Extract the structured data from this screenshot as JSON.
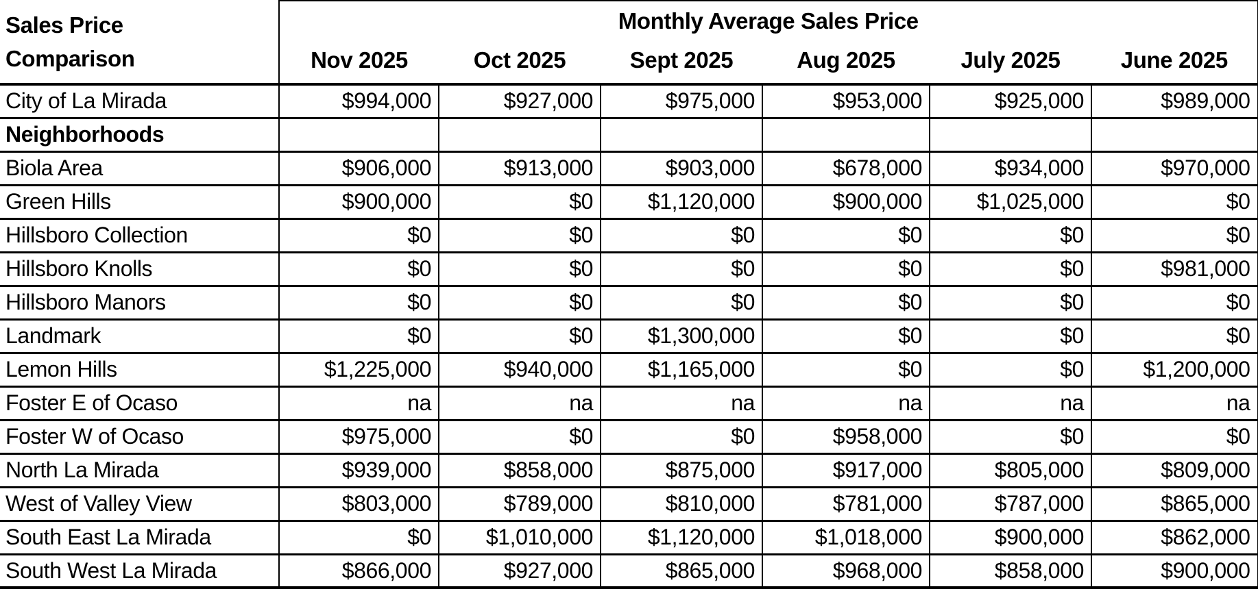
{
  "colors": {
    "text": "#000000",
    "background": "#ffffff",
    "border": "#000000"
  },
  "chart_data": {
    "type": "table",
    "title": "Monthly Average Sales Price",
    "corner_title_lines": [
      "Sales Price",
      "Comparison"
    ],
    "columns": [
      "Nov 2025",
      "Oct 2025",
      "Sept 2025",
      "Aug 2025",
      "July 2025",
      "June 2025"
    ],
    "rows": [
      {
        "label": "City of La Mirada",
        "bold": false,
        "values": [
          "$994,000",
          "$927,000",
          "$975,000",
          "$953,000",
          "$925,000",
          "$989,000"
        ]
      },
      {
        "label": "Neighborhoods",
        "bold": true,
        "values": [
          "",
          "",
          "",
          "",
          "",
          ""
        ]
      },
      {
        "label": "Biola Area",
        "bold": false,
        "values": [
          "$906,000",
          "$913,000",
          "$903,000",
          "$678,000",
          "$934,000",
          "$970,000"
        ]
      },
      {
        "label": "Green Hills",
        "bold": false,
        "values": [
          "$900,000",
          "$0",
          "$1,120,000",
          "$900,000",
          "$1,025,000",
          "$0"
        ]
      },
      {
        "label": "Hillsboro Collection",
        "bold": false,
        "values": [
          "$0",
          "$0",
          "$0",
          "$0",
          "$0",
          "$0"
        ]
      },
      {
        "label": "Hillsboro Knolls",
        "bold": false,
        "values": [
          "$0",
          "$0",
          "$0",
          "$0",
          "$0",
          "$981,000"
        ]
      },
      {
        "label": "Hillsboro Manors",
        "bold": false,
        "values": [
          "$0",
          "$0",
          "$0",
          "$0",
          "$0",
          "$0"
        ]
      },
      {
        "label": "Landmark",
        "bold": false,
        "values": [
          "$0",
          "$0",
          "$1,300,000",
          "$0",
          "$0",
          "$0"
        ]
      },
      {
        "label": "Lemon Hills",
        "bold": false,
        "values": [
          "$1,225,000",
          "$940,000",
          "$1,165,000",
          "$0",
          "$0",
          "$1,200,000"
        ]
      },
      {
        "label": "Foster E of Ocaso",
        "bold": false,
        "values": [
          "na",
          "na",
          "na",
          "na",
          "na",
          "na"
        ]
      },
      {
        "label": "Foster W of Ocaso",
        "bold": false,
        "values": [
          "$975,000",
          "$0",
          "$0",
          "$958,000",
          "$0",
          "$0"
        ]
      },
      {
        "label": "North La Mirada",
        "bold": false,
        "values": [
          "$939,000",
          "$858,000",
          "$875,000",
          "$917,000",
          "$805,000",
          "$809,000"
        ]
      },
      {
        "label": "West of Valley View",
        "bold": false,
        "values": [
          "$803,000",
          "$789,000",
          "$810,000",
          "$781,000",
          "$787,000",
          "$865,000"
        ]
      },
      {
        "label": "South East La Mirada",
        "bold": false,
        "values": [
          "$0",
          "$1,010,000",
          "$1,120,000",
          "$1,018,000",
          "$900,000",
          "$862,000"
        ]
      },
      {
        "label": "South West La Mirada",
        "bold": false,
        "values": [
          "$866,000",
          "$927,000",
          "$865,000",
          "$968,000",
          "$858,000",
          "$900,000"
        ]
      }
    ]
  }
}
